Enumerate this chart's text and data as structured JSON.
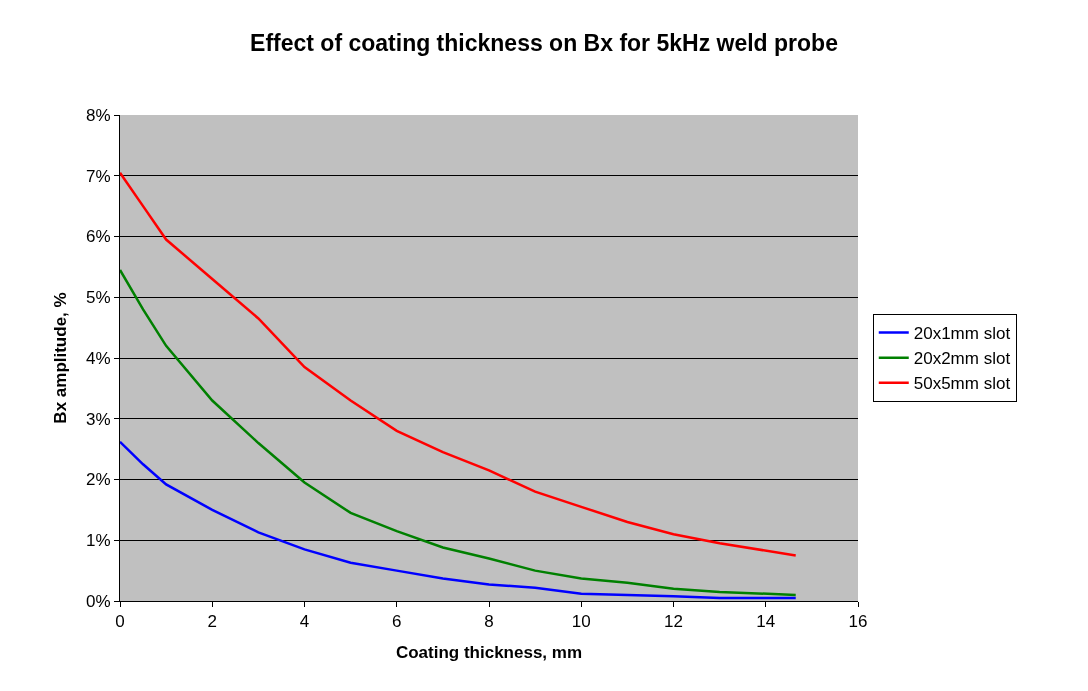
{
  "chart_data": {
    "type": "line",
    "title": "Effect of coating thickness on Bx for 5kHz weld probe",
    "xlabel": "Coating thickness, mm",
    "ylabel": "Bx amplitude, %",
    "x": [
      0,
      0.5,
      1,
      2,
      3,
      4,
      5,
      6,
      7,
      8,
      9,
      10,
      11,
      12,
      13,
      14.65
    ],
    "series": [
      {
        "name": "20x1mm slot",
        "color": "#0000ff",
        "values": [
          2.62,
          2.25,
          1.92,
          1.5,
          1.13,
          0.85,
          0.63,
          0.5,
          0.37,
          0.27,
          0.22,
          0.12,
          0.1,
          0.08,
          0.05,
          0.05
        ]
      },
      {
        "name": "20x2mm slot",
        "color": "#008000",
        "values": [
          5.45,
          4.8,
          4.2,
          3.3,
          2.6,
          1.95,
          1.45,
          1.15,
          0.88,
          0.7,
          0.5,
          0.37,
          0.3,
          0.2,
          0.15,
          0.1
        ]
      },
      {
        "name": "50x5mm slot",
        "color": "#ff0000",
        "values": [
          7.05,
          6.5,
          5.95,
          5.3,
          4.65,
          3.85,
          3.3,
          2.8,
          2.45,
          2.15,
          1.8,
          1.55,
          1.3,
          1.1,
          0.95,
          0.75
        ]
      }
    ],
    "xlim": [
      0,
      16
    ],
    "xticks": [
      0,
      2,
      4,
      6,
      8,
      10,
      12,
      14,
      16
    ],
    "ylim": [
      0,
      8
    ],
    "yticks": [
      {
        "value": 0,
        "label": "0%"
      },
      {
        "value": 1,
        "label": "1%"
      },
      {
        "value": 2,
        "label": "2%"
      },
      {
        "value": 3,
        "label": "3%"
      },
      {
        "value": 4,
        "label": "4%"
      },
      {
        "value": 5,
        "label": "5%"
      },
      {
        "value": 6,
        "label": "6%"
      },
      {
        "value": 7,
        "label": "7%"
      },
      {
        "value": 8,
        "label": "8%"
      }
    ],
    "grid": "y",
    "legend": "right",
    "marker": "none",
    "line_style": "solid"
  }
}
